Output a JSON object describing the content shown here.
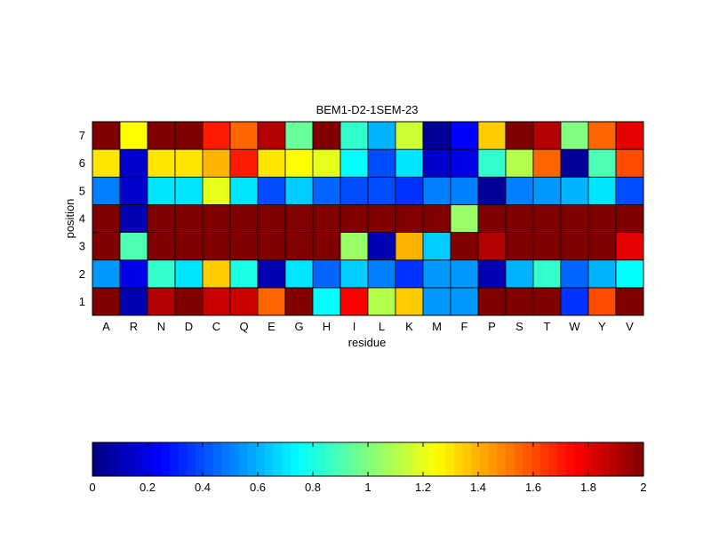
{
  "chart_data": {
    "type": "heatmap",
    "title": "BEM1-D2-1SEM-23",
    "xlabel": "residue",
    "ylabel": "position",
    "x_categories": [
      "A",
      "R",
      "N",
      "D",
      "C",
      "Q",
      "E",
      "G",
      "H",
      "I",
      "L",
      "K",
      "M",
      "F",
      "P",
      "S",
      "T",
      "W",
      "Y",
      "V"
    ],
    "y_categories": [
      "1",
      "2",
      "3",
      "4",
      "5",
      "6",
      "7"
    ],
    "values": [
      [
        2.0,
        0.1,
        1.9,
        2.0,
        1.85,
        1.85,
        1.55,
        2.0,
        0.75,
        1.75,
        1.1,
        1.35,
        0.55,
        0.55,
        2.0,
        2.0,
        2.0,
        0.35,
        1.6,
        2.0
      ],
      [
        0.55,
        0.2,
        0.85,
        0.7,
        1.35,
        0.8,
        0.1,
        0.7,
        0.45,
        0.65,
        0.5,
        0.35,
        0.55,
        0.55,
        0.1,
        0.6,
        0.85,
        0.45,
        0.6,
        0.75
      ],
      [
        2.0,
        0.9,
        2.0,
        2.0,
        2.0,
        2.0,
        2.0,
        2.0,
        2.0,
        1.05,
        0.1,
        1.4,
        0.65,
        2.0,
        1.9,
        2.0,
        2.0,
        2.0,
        2.0,
        1.8
      ],
      [
        2.0,
        0.1,
        2.0,
        2.0,
        2.0,
        2.0,
        2.0,
        2.0,
        2.0,
        2.0,
        2.0,
        2.0,
        2.0,
        1.05,
        2.0,
        2.0,
        2.0,
        2.0,
        2.0,
        2.0
      ],
      [
        0.5,
        0.15,
        0.7,
        0.7,
        1.2,
        0.7,
        0.4,
        0.65,
        0.45,
        0.4,
        0.4,
        0.35,
        0.5,
        0.5,
        0.05,
        0.5,
        0.55,
        0.6,
        0.7,
        0.4
      ],
      [
        1.3,
        0.15,
        1.3,
        1.3,
        1.4,
        1.7,
        1.3,
        1.25,
        1.2,
        0.75,
        0.4,
        0.7,
        0.15,
        0.2,
        0.85,
        1.1,
        1.55,
        0.05,
        0.9,
        1.6
      ],
      [
        2.0,
        1.25,
        2.0,
        2.0,
        1.7,
        1.55,
        1.9,
        0.95,
        2.0,
        0.85,
        0.6,
        1.15,
        0.05,
        0.25,
        1.35,
        2.0,
        1.9,
        1.0,
        1.55,
        1.8
      ]
    ],
    "zlim": [
      0,
      2
    ],
    "colormap": "jet",
    "colorbar": {
      "position": "bottom",
      "ticks": [
        "0",
        "0.2",
        "0.4",
        "0.6",
        "0.8",
        "1",
        "1.2",
        "1.4",
        "1.6",
        "1.8",
        "2"
      ]
    },
    "grid": true
  }
}
